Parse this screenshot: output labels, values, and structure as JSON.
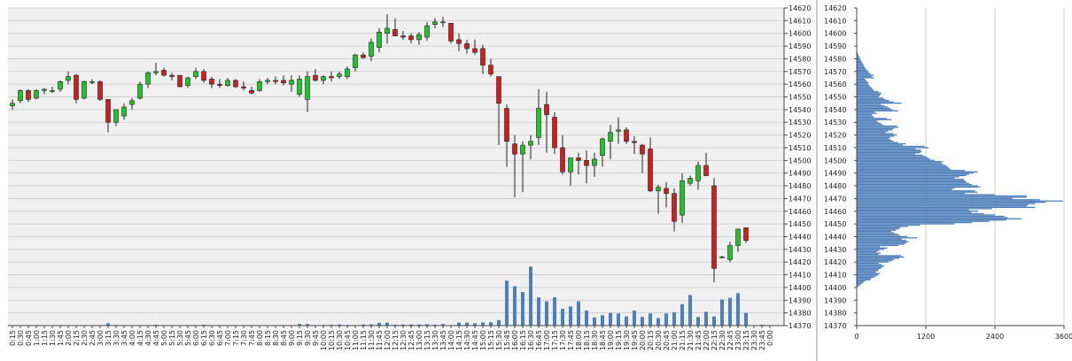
{
  "chart_data": [
    {
      "type": "candlestick",
      "title": "",
      "xlabel": "",
      "ylabel": "",
      "ylim": [
        14370,
        14620
      ],
      "y_ticks": [
        14370,
        14380,
        14390,
        14400,
        14410,
        14420,
        14430,
        14440,
        14450,
        14460,
        14470,
        14480,
        14490,
        14500,
        14510,
        14520,
        14530,
        14540,
        14550,
        14560,
        14570,
        14580,
        14590,
        14600,
        14610,
        14620
      ],
      "x_labels": [
        "0:15",
        "0:30",
        "0:45",
        "1:00",
        "1:15",
        "1:30",
        "1:45",
        "2:00",
        "2:15",
        "2:30",
        "2:45",
        "3:00",
        "3:15",
        "3:30",
        "3:45",
        "4:00",
        "4:15",
        "4:30",
        "4:45",
        "5:00",
        "5:15",
        "5:30",
        "5:45",
        "6:00",
        "6:15",
        "6:30",
        "6:45",
        "7:00",
        "7:15",
        "7:30",
        "7:45",
        "8:00",
        "8:15",
        "8:30",
        "8:45",
        "9:00",
        "9:15",
        "9:30",
        "9:45",
        "10:00",
        "10:15",
        "10:30",
        "10:45",
        "11:00",
        "11:15",
        "11:30",
        "11:45",
        "12:00",
        "12:15",
        "12:30",
        "12:45",
        "13:00",
        "13:15",
        "13:30",
        "13:45",
        "14:00",
        "14:15",
        "14:30",
        "14:45",
        "15:00",
        "15:15",
        "15:30",
        "15:45",
        "16:00",
        "16:15",
        "16:30",
        "16:45",
        "17:00",
        "17:15",
        "17:30",
        "17:45",
        "18:00",
        "18:15",
        "18:30",
        "18:45",
        "19:00",
        "19:15",
        "19:30",
        "19:45",
        "20:00",
        "20:15",
        "20:30",
        "20:45",
        "21:00",
        "21:15",
        "21:30",
        "21:45",
        "22:00",
        "22:15",
        "22:30",
        "22:45",
        "23:00",
        "23:15",
        "23:30",
        "23:45",
        "0:00"
      ],
      "grid": true,
      "colors": {
        "up": "#22c22a",
        "down": "#cc2020",
        "volume": "#4f7fb8",
        "grid": "#cfcfcf",
        "background": "#f0f0f0"
      },
      "candles": [
        [
          14543,
          14548,
          14540,
          14545
        ],
        [
          14547,
          14556,
          14545,
          14555
        ],
        [
          14555,
          14556,
          14546,
          14548
        ],
        [
          14549,
          14556,
          14548,
          14555
        ],
        [
          14555,
          14557,
          14552,
          14556
        ],
        [
          14555,
          14558,
          14553,
          14555
        ],
        [
          14556,
          14563,
          14554,
          14562
        ],
        [
          14563,
          14570,
          14560,
          14566
        ],
        [
          14567,
          14568,
          14545,
          14548
        ],
        [
          14549,
          14563,
          14548,
          14562
        ],
        [
          14562,
          14564,
          14560,
          14562
        ],
        [
          14562,
          14563,
          14547,
          14548
        ],
        [
          14548,
          14548,
          14522,
          14530
        ],
        [
          14530,
          14538,
          14527,
          14540
        ],
        [
          14535,
          14545,
          14532,
          14542
        ],
        [
          14544,
          14549,
          14540,
          14547
        ],
        [
          14549,
          14562,
          14548,
          14560
        ],
        [
          14560,
          14570,
          14557,
          14569
        ],
        [
          14569,
          14577,
          14567,
          14570
        ],
        [
          14571,
          14573,
          14566,
          14567
        ],
        [
          14567,
          14569,
          14563,
          14566
        ],
        [
          14567,
          14567,
          14558,
          14558
        ],
        [
          14559,
          14566,
          14557,
          14565
        ],
        [
          14566,
          14573,
          14564,
          14570
        ],
        [
          14570,
          14572,
          14561,
          14563
        ],
        [
          14564,
          14566,
          14557,
          14560
        ],
        [
          14560,
          14564,
          14557,
          14559
        ],
        [
          14559,
          14565,
          14558,
          14563
        ],
        [
          14563,
          14564,
          14557,
          14558
        ],
        [
          14558,
          14562,
          14555,
          14557
        ],
        [
          14555,
          14558,
          14552,
          14553
        ],
        [
          14555,
          14564,
          14554,
          14562
        ],
        [
          14562,
          14565,
          14560,
          14563
        ],
        [
          14563,
          14566,
          14560,
          14562
        ],
        [
          14563,
          14567,
          14559,
          14561
        ],
        [
          14560,
          14567,
          14554,
          14563
        ],
        [
          14552,
          14567,
          14550,
          14564
        ],
        [
          14548,
          14570,
          14538,
          14566
        ],
        [
          14567,
          14572,
          14562,
          14563
        ],
        [
          14563,
          14567,
          14560,
          14566
        ],
        [
          14566,
          14570,
          14562,
          14565
        ],
        [
          14566,
          14570,
          14564,
          14568
        ],
        [
          14566,
          14574,
          14564,
          14572
        ],
        [
          14573,
          14584,
          14570,
          14583
        ],
        [
          14583,
          14585,
          14580,
          14581
        ],
        [
          14582,
          14596,
          14578,
          14593
        ],
        [
          14589,
          14604,
          14585,
          14601
        ],
        [
          14600,
          14615,
          14592,
          14604
        ],
        [
          14603,
          14612,
          14598,
          14598
        ],
        [
          14598,
          14602,
          14595,
          14597
        ],
        [
          14598,
          14600,
          14592,
          14595
        ],
        [
          14595,
          14601,
          14591,
          14599
        ],
        [
          14597,
          14609,
          14594,
          14606
        ],
        [
          14607,
          14612,
          14604,
          14609
        ],
        [
          14609,
          14613,
          14605,
          14609
        ],
        [
          14608,
          14608,
          14592,
          14594
        ],
        [
          14595,
          14600,
          14586,
          14592
        ],
        [
          14592,
          14595,
          14584,
          14588
        ],
        [
          14588,
          14595,
          14583,
          14585
        ],
        [
          14588,
          14591,
          14568,
          14575
        ],
        [
          14575,
          14580,
          14566,
          14568
        ],
        [
          14566,
          14566,
          14512,
          14545
        ],
        [
          14541,
          14544,
          14495,
          14515
        ],
        [
          14513,
          14520,
          14471,
          14505
        ],
        [
          14505,
          14515,
          14475,
          14512
        ],
        [
          14512,
          14520,
          14501,
          14515
        ],
        [
          14518,
          14556,
          14512,
          14541
        ],
        [
          14544,
          14554,
          14506,
          14536
        ],
        [
          14534,
          14538,
          14505,
          14510
        ],
        [
          14510,
          14520,
          14489,
          14491
        ],
        [
          14491,
          14502,
          14480,
          14502
        ],
        [
          14502,
          14506,
          14489,
          14500
        ],
        [
          14500,
          14508,
          14482,
          14496
        ],
        [
          14496,
          14506,
          14487,
          14501
        ],
        [
          14504,
          14518,
          14495,
          14517
        ],
        [
          14515,
          14528,
          14501,
          14522
        ],
        [
          14523,
          14534,
          14513,
          14524
        ],
        [
          14524,
          14526,
          14513,
          14515
        ],
        [
          14515,
          14519,
          14505,
          14514
        ],
        [
          14512,
          14513,
          14490,
          14505
        ],
        [
          14509,
          14518,
          14475,
          14476
        ],
        [
          14476,
          14481,
          14458,
          14479
        ],
        [
          14478,
          14483,
          14463,
          14474
        ],
        [
          14474,
          14478,
          14444,
          14452
        ],
        [
          14457,
          14490,
          14451,
          14484
        ],
        [
          14482,
          14488,
          14480,
          14486
        ],
        [
          14484,
          14499,
          14477,
          14496
        ],
        [
          14496,
          14506,
          14490,
          14488
        ],
        [
          14480,
          14486,
          14404,
          14415
        ],
        [
          14424,
          14425,
          14423,
          14424
        ],
        [
          14422,
          14436,
          14420,
          14433
        ],
        [
          14433,
          14446,
          14428,
          14446
        ],
        [
          14447,
          14447,
          14435,
          14437
        ]
      ],
      "volume": [
        3,
        1,
        1,
        1,
        1,
        1,
        1,
        2,
        1,
        1,
        2,
        2,
        20,
        6,
        2,
        1,
        4,
        2,
        6,
        1,
        1,
        1,
        1,
        2,
        8,
        2,
        1,
        1,
        1,
        1,
        1,
        1,
        1,
        1,
        2,
        2,
        14,
        14,
        2,
        6,
        7,
        9,
        5,
        4,
        10,
        11,
        24,
        25,
        8,
        9,
        10,
        10,
        12,
        8,
        14,
        4,
        26,
        25,
        20,
        28,
        30,
        48,
        388,
        340,
        290,
        510,
        245,
        210,
        245,
        145,
        165,
        210,
        130,
        70,
        90,
        110,
        105,
        80,
        130,
        75,
        105,
        65,
        105,
        115,
        185,
        265,
        75,
        120,
        80,
        225,
        240,
        280,
        110,
        1,
        8,
        1
      ]
    },
    {
      "type": "bar",
      "orientation": "horizontal",
      "title": "",
      "xlabel": "",
      "ylabel": "",
      "xlim": [
        0,
        3600
      ],
      "x_ticks": [
        0,
        1200,
        2400,
        3600
      ],
      "ylim": [
        14370,
        14620
      ],
      "y_ticks": [
        14370,
        14380,
        14390,
        14400,
        14410,
        14420,
        14430,
        14440,
        14450,
        14460,
        14470,
        14480,
        14490,
        14500,
        14510,
        14520,
        14530,
        14540,
        14550,
        14560,
        14570,
        14580,
        14590,
        14600,
        14610,
        14620
      ],
      "y_step": 1,
      "y_start": 14401,
      "values": [
        40,
        60,
        90,
        120,
        150,
        240,
        250,
        300,
        350,
        380,
        400,
        330,
        370,
        380,
        420,
        450,
        480,
        430,
        380,
        550,
        610,
        650,
        740,
        820,
        770,
        380,
        420,
        350,
        390,
        480,
        530,
        400,
        720,
        830,
        860,
        900,
        860,
        780,
        1050,
        880,
        750,
        710,
        650,
        600,
        680,
        730,
        760,
        890,
        1100,
        1700,
        2000,
        2300,
        2600,
        2870,
        2620,
        2560,
        2400,
        2210,
        1990,
        2110,
        1950,
        2350,
        3100,
        2950,
        2980,
        3100,
        3280,
        3580,
        3180,
        2700,
        2950,
        2950,
        2400,
        1880,
        2100,
        2050,
        1650,
        1700,
        2150,
        2100,
        2000,
        1950,
        1900,
        1880,
        1860,
        1700,
        1780,
        1900,
        1950,
        2030,
        2100,
        1880,
        1630,
        1600,
        1580,
        1550,
        1500,
        1470,
        1500,
        1350,
        1280,
        1240,
        1200,
        1150,
        1020,
        1100,
        1130,
        1110,
        1020,
        1250,
        1180,
        800,
        850,
        720,
        640,
        600,
        560,
        580,
        650,
        700,
        640,
        500,
        550,
        620,
        640,
        720,
        700,
        460,
        420,
        380,
        350,
        600,
        520,
        300,
        280,
        260,
        350,
        310,
        720,
        620,
        580,
        540,
        480,
        420,
        780,
        640,
        560,
        500,
        460,
        380,
        400,
        420,
        420,
        380,
        300,
        280,
        260,
        240,
        220,
        200,
        200,
        180,
        160,
        140,
        300,
        260,
        300,
        240,
        220,
        200,
        180,
        160,
        140,
        130,
        120,
        110,
        90,
        80,
        70,
        60,
        50,
        40,
        30,
        20,
        10,
        5,
        2,
        1
      ]
    }
  ]
}
